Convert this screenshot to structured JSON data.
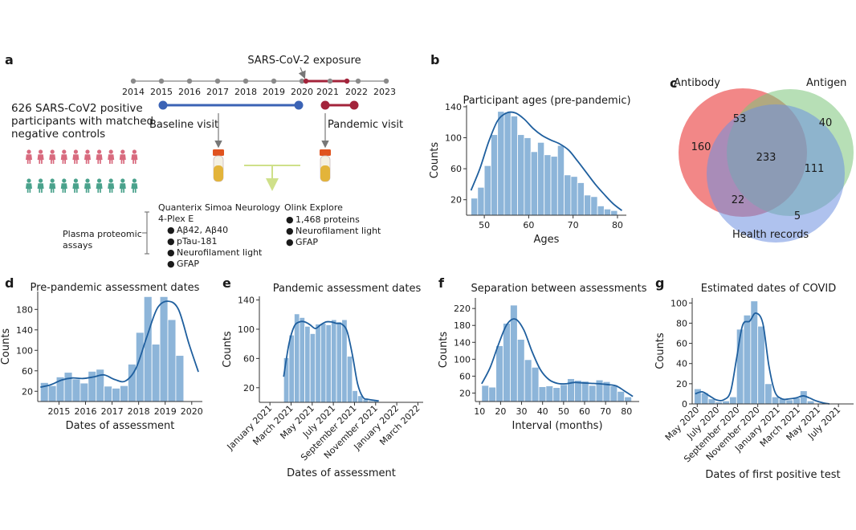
{
  "panel_letters": [
    "a",
    "b",
    "c",
    "d",
    "e",
    "f",
    "g"
  ],
  "colors": {
    "bar": "#8db5d9",
    "kde": "#1f5f9e",
    "baseline": "#3b63b5",
    "pandemic": "#a3243b",
    "arrow": "#cfe08a"
  },
  "panel_a": {
    "years": [
      "2014",
      "2015",
      "2016",
      "2017",
      "2018",
      "2019",
      "2020",
      "2021",
      "2022",
      "2023"
    ],
    "exposure_label": "SARS-CoV-2 exposure",
    "cohort_text": [
      "626 SARS-CoV2 positive",
      "participants with matched",
      "negative controls"
    ],
    "baseline_label": "Baseline visit",
    "pandemic_label": "Pandemic visit",
    "assays_label": [
      "Plasma proteomic",
      "assays"
    ],
    "simoa": {
      "title": [
        "Quanterix Simoa Neurology",
        "4-Plex E"
      ],
      "items": [
        "Aβ42, Aβ40",
        "pTau-181",
        "Neurofilament light",
        "GFAP"
      ]
    },
    "olink": {
      "title": "Olink Explore",
      "items": [
        "1,468 proteins",
        "Neurofilament light",
        "GFAP"
      ]
    }
  },
  "panel_c": {
    "sets": [
      "Antibody",
      "Antigen",
      "Health records"
    ],
    "regions": {
      "antibody_only": "160",
      "antibody_antigen": "53",
      "antigen_only": "40",
      "all_three": "233",
      "antigen_health": "111",
      "antibody_health": "22",
      "health_only": "5"
    },
    "set_colors": [
      "#f07676",
      "#7cc47a",
      "#6e8fe0"
    ]
  },
  "chart_data": [
    {
      "panel": "b",
      "type": "bar",
      "title": "Participant ages (pre-pandemic)",
      "xlabel": "Ages",
      "ylabel": "Counts",
      "xlim": [
        46,
        82
      ],
      "ylim": [
        0,
        142
      ],
      "x_ticks": [
        "50",
        "60",
        "70",
        "80"
      ],
      "y_ticks": [
        "20",
        "60",
        "100",
        "140"
      ],
      "bins": [
        [
          47,
          48.5
        ],
        [
          48.5,
          50
        ],
        [
          50,
          51.5
        ],
        [
          51.5,
          53
        ],
        [
          53,
          54.5
        ],
        [
          54.5,
          56
        ],
        [
          56,
          57.5
        ],
        [
          57.5,
          59
        ],
        [
          59,
          60.5
        ],
        [
          60.5,
          62
        ],
        [
          62,
          63.5
        ],
        [
          63.5,
          65
        ],
        [
          65,
          66.5
        ],
        [
          66.5,
          68
        ],
        [
          68,
          69.5
        ],
        [
          69.5,
          71
        ],
        [
          71,
          72.5
        ],
        [
          72.5,
          74
        ],
        [
          74,
          75.5
        ],
        [
          75.5,
          77
        ],
        [
          77,
          78.5
        ],
        [
          78.5,
          80
        ]
      ],
      "values": [
        22,
        36,
        64,
        104,
        134,
        133,
        128,
        104,
        100,
        82,
        94,
        78,
        76,
        90,
        52,
        50,
        42,
        26,
        24,
        12,
        8,
        6
      ],
      "kde": [
        [
          47,
          32
        ],
        [
          49,
          60
        ],
        [
          51,
          95
        ],
        [
          53,
          122
        ],
        [
          55,
          132
        ],
        [
          57,
          132
        ],
        [
          59,
          124
        ],
        [
          61,
          112
        ],
        [
          63,
          103
        ],
        [
          65,
          97
        ],
        [
          67,
          92
        ],
        [
          69,
          84
        ],
        [
          71,
          70
        ],
        [
          73,
          55
        ],
        [
          75,
          40
        ],
        [
          77,
          27
        ],
        [
          79,
          15
        ],
        [
          81,
          6
        ]
      ]
    },
    {
      "panel": "d",
      "type": "bar",
      "title": "Pre-pandemic assessment dates",
      "xlabel": "Dates of assessment",
      "ylabel": "Counts",
      "xlim": [
        2014.2,
        2020.4
      ],
      "ylim": [
        0,
        215
      ],
      "x_ticks": [
        "2015",
        "2016",
        "2017",
        "2018",
        "2019",
        "2020"
      ],
      "y_ticks": [
        "20",
        "60",
        "100",
        "140",
        "180"
      ],
      "bins": [
        [
          2014.3,
          2014.6
        ],
        [
          2014.6,
          2014.9
        ],
        [
          2014.9,
          2015.2
        ],
        [
          2015.2,
          2015.5
        ],
        [
          2015.5,
          2015.8
        ],
        [
          2015.8,
          2016.1
        ],
        [
          2016.1,
          2016.4
        ],
        [
          2016.4,
          2016.7
        ],
        [
          2016.7,
          2017.0
        ],
        [
          2017.0,
          2017.3
        ],
        [
          2017.3,
          2017.6
        ],
        [
          2017.6,
          2017.9
        ],
        [
          2017.9,
          2018.2
        ],
        [
          2018.2,
          2018.5
        ],
        [
          2018.5,
          2018.8
        ],
        [
          2018.8,
          2019.1
        ],
        [
          2019.1,
          2019.4
        ],
        [
          2019.4,
          2019.7
        ],
        [
          2019.7,
          2020.0
        ],
        [
          2020.0,
          2020.3
        ]
      ],
      "values": [
        37,
        31,
        48,
        57,
        44,
        36,
        59,
        63,
        30,
        26,
        31,
        73,
        135,
        205,
        112,
        205,
        160,
        90,
        0,
        0
      ],
      "kde": [
        [
          2014.3,
          28
        ],
        [
          2014.7,
          33
        ],
        [
          2015.1,
          42
        ],
        [
          2015.5,
          46
        ],
        [
          2015.9,
          45
        ],
        [
          2016.3,
          48
        ],
        [
          2016.7,
          52
        ],
        [
          2017.1,
          43
        ],
        [
          2017.5,
          40
        ],
        [
          2017.9,
          65
        ],
        [
          2018.3,
          125
        ],
        [
          2018.7,
          182
        ],
        [
          2019.1,
          196
        ],
        [
          2019.5,
          180
        ],
        [
          2019.9,
          112
        ],
        [
          2020.25,
          58
        ]
      ]
    },
    {
      "panel": "e",
      "type": "bar",
      "title": "Pandemic assessment dates",
      "xlabel": "Dates of assessment",
      "ylabel": "Counts",
      "xlim": [
        0,
        15.5
      ],
      "ylim": [
        0,
        145
      ],
      "x_ticks": [
        "January 2021",
        "March 2021",
        "May 2021",
        "July 2021",
        "September 2021",
        "November 2021",
        "January 2022",
        "March 2022"
      ],
      "y_ticks": [
        "20",
        "60",
        "100",
        "140"
      ],
      "bins": [
        [
          2.3,
          2.8
        ],
        [
          2.8,
          3.3
        ],
        [
          3.3,
          3.8
        ],
        [
          3.8,
          4.3
        ],
        [
          4.3,
          4.8
        ],
        [
          4.8,
          5.3
        ],
        [
          5.3,
          5.8
        ],
        [
          5.8,
          6.3
        ],
        [
          6.3,
          6.8
        ],
        [
          6.8,
          7.3
        ],
        [
          7.3,
          7.8
        ],
        [
          7.8,
          8.3
        ],
        [
          8.3,
          8.8
        ],
        [
          8.8,
          9.3
        ],
        [
          9.3,
          9.8
        ],
        [
          9.8,
          10.3
        ],
        [
          10.3,
          10.8
        ],
        [
          10.8,
          11.3
        ]
      ],
      "values": [
        61,
        92,
        121,
        116,
        104,
        94,
        107,
        108,
        106,
        113,
        110,
        113,
        63,
        16,
        9,
        4,
        2,
        2
      ],
      "kde": [
        [
          2.3,
          35
        ],
        [
          2.8,
          80
        ],
        [
          3.3,
          104
        ],
        [
          3.8,
          110
        ],
        [
          4.3,
          110
        ],
        [
          4.8,
          106
        ],
        [
          5.3,
          101
        ],
        [
          5.8,
          106
        ],
        [
          6.3,
          110
        ],
        [
          6.8,
          110
        ],
        [
          7.3,
          108
        ],
        [
          7.8,
          107
        ],
        [
          8.3,
          97
        ],
        [
          8.8,
          65
        ],
        [
          9.3,
          25
        ],
        [
          9.8,
          7
        ],
        [
          10.3,
          4
        ],
        [
          11.3,
          2
        ]
      ]
    },
    {
      "panel": "f",
      "type": "bar",
      "title": "Separation between assessments",
      "xlabel": "Interval (months)",
      "ylabel": "Counts",
      "xlim": [
        8,
        86
      ],
      "ylim": [
        0,
        245
      ],
      "x_ticks": [
        "10",
        "20",
        "30",
        "40",
        "50",
        "60",
        "70",
        "80"
      ],
      "y_ticks": [
        "20",
        "60",
        "100",
        "140",
        "180",
        "220"
      ],
      "bins": [
        [
          11,
          14.4
        ],
        [
          14.4,
          17.8
        ],
        [
          17.8,
          21.2
        ],
        [
          21.2,
          24.6
        ],
        [
          24.6,
          28
        ],
        [
          28,
          31.4
        ],
        [
          31.4,
          34.8
        ],
        [
          34.8,
          38.2
        ],
        [
          38.2,
          41.6
        ],
        [
          41.6,
          45
        ],
        [
          45,
          48.4
        ],
        [
          48.4,
          51.8
        ],
        [
          51.8,
          55.2
        ],
        [
          55.2,
          58.6
        ],
        [
          58.6,
          62
        ],
        [
          62,
          65.4
        ],
        [
          65.4,
          68.8
        ],
        [
          68.8,
          72.2
        ],
        [
          72.2,
          75.6
        ],
        [
          75.6,
          79
        ],
        [
          79,
          82.4
        ]
      ],
      "values": [
        38,
        34,
        132,
        185,
        228,
        147,
        99,
        81,
        35,
        37,
        33,
        40,
        54,
        50,
        48,
        38,
        51,
        47,
        37,
        24,
        11
      ],
      "kde": [
        [
          11,
          42
        ],
        [
          15,
          80
        ],
        [
          19,
          135
        ],
        [
          23,
          182
        ],
        [
          27,
          195
        ],
        [
          31,
          170
        ],
        [
          35,
          118
        ],
        [
          39,
          75
        ],
        [
          43,
          52
        ],
        [
          47,
          43
        ],
        [
          51,
          42
        ],
        [
          55,
          45
        ],
        [
          59,
          44
        ],
        [
          63,
          43
        ],
        [
          67,
          42
        ],
        [
          71,
          40
        ],
        [
          75,
          37
        ],
        [
          79,
          25
        ],
        [
          83,
          12
        ]
      ]
    },
    {
      "panel": "g",
      "type": "bar",
      "title": "Estimated dates of COVID",
      "xlabel": "Dates of first positive test",
      "ylabel": "Counts",
      "xlim": [
        0,
        16
      ],
      "ylim": [
        0,
        105
      ],
      "x_ticks": [
        "May 2020",
        "July 2020",
        "September 2020",
        "November 2020",
        "January 2021",
        "March 2021",
        "May 2021",
        "July 2021"
      ],
      "y_ticks": [
        "0",
        "20",
        "40",
        "60",
        "80",
        "100"
      ],
      "bins": [
        [
          0.2,
          0.9
        ],
        [
          0.9,
          1.6
        ],
        [
          1.6,
          2.3
        ],
        [
          2.3,
          3.0
        ],
        [
          3.0,
          3.7
        ],
        [
          3.7,
          4.4
        ],
        [
          4.4,
          5.1
        ],
        [
          5.1,
          5.8
        ],
        [
          5.8,
          6.5
        ],
        [
          6.5,
          7.2
        ],
        [
          7.2,
          7.9
        ],
        [
          7.9,
          8.6
        ],
        [
          8.6,
          9.3
        ],
        [
          9.3,
          10.0
        ],
        [
          10.0,
          10.7
        ],
        [
          10.7,
          11.4
        ],
        [
          11.4,
          12.1
        ],
        [
          12.1,
          12.8
        ],
        [
          12.8,
          13.5
        ],
        [
          13.5,
          14.2
        ],
        [
          14.2,
          14.9
        ]
      ],
      "values": [
        15,
        11,
        5,
        2,
        3,
        7,
        74,
        88,
        102,
        77,
        20,
        7,
        5,
        4,
        6,
        13,
        3,
        0,
        0,
        0,
        0
      ],
      "kde": [
        [
          0.3,
          10
        ],
        [
          1.0,
          12
        ],
        [
          1.7,
          8
        ],
        [
          2.4,
          4
        ],
        [
          3.1,
          4
        ],
        [
          3.8,
          12
        ],
        [
          4.4,
          45
        ],
        [
          5.0,
          78
        ],
        [
          5.7,
          82
        ],
        [
          6.3,
          90
        ],
        [
          7.0,
          80
        ],
        [
          7.6,
          38
        ],
        [
          8.2,
          12
        ],
        [
          8.9,
          5
        ],
        [
          9.6,
          5
        ],
        [
          10.3,
          6
        ],
        [
          11.0,
          8
        ],
        [
          11.6,
          6
        ],
        [
          12.3,
          3
        ],
        [
          13.0,
          1
        ],
        [
          13.6,
          0
        ]
      ]
    }
  ]
}
